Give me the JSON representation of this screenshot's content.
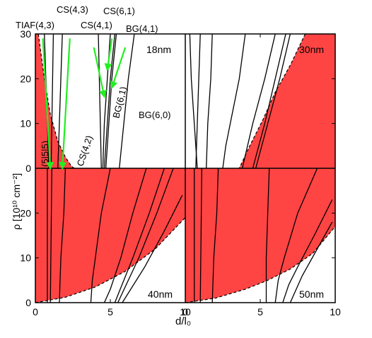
{
  "chart_data": {
    "type": "line",
    "xlabel": "d/l₀",
    "ylabel": "ρ [10¹⁰ cm⁻²]",
    "xlim": [
      0,
      10
    ],
    "ylim": [
      0,
      30
    ],
    "x_ticks": [
      0,
      5,
      10
    ],
    "y_ticks": [
      0,
      10,
      20,
      30
    ],
    "grid": false,
    "colors": {
      "shaded_region": "#ff4444",
      "curve": "#000000",
      "arrow": "#22ee22",
      "boundary": "#000000"
    },
    "panels": [
      {
        "id": "top-left",
        "label": "18nm",
        "boundary": [
          [
            0.2,
            30
          ],
          [
            0.6,
            20
          ],
          [
            1.0,
            12
          ],
          [
            1.5,
            6
          ],
          [
            2.0,
            2.5
          ],
          [
            2.4,
            0.5
          ],
          [
            2.6,
            0
          ]
        ],
        "curves": [
          [
            [
              0.6,
              30
            ],
            [
              0.7,
              20
            ],
            [
              0.8,
              10
            ],
            [
              0.9,
              0
            ]
          ],
          [
            [
              1.2,
              30
            ],
            [
              1.15,
              20
            ],
            [
              1.1,
              10
            ],
            [
              1.05,
              0
            ]
          ],
          [
            [
              1.8,
              30
            ],
            [
              1.7,
              20
            ],
            [
              1.6,
              10
            ],
            [
              1.5,
              0
            ]
          ],
          [
            [
              4.2,
              30
            ],
            [
              4.3,
              15
            ],
            [
              4.4,
              0
            ]
          ],
          [
            [
              5.0,
              30
            ],
            [
              4.8,
              20
            ],
            [
              4.6,
              10
            ],
            [
              4.5,
              0
            ]
          ],
          [
            [
              5.3,
              30
            ],
            [
              5.0,
              20
            ],
            [
              4.8,
              10
            ],
            [
              4.6,
              0
            ]
          ],
          [
            [
              5.4,
              30
            ],
            [
              5.1,
              20
            ],
            [
              4.9,
              10
            ],
            [
              4.7,
              0
            ]
          ],
          [
            [
              6.6,
              30
            ],
            [
              6.2,
              20
            ],
            [
              5.9,
              10
            ],
            [
              5.6,
              0
            ]
          ]
        ],
        "labels": [
          "TIAF(4,3)",
          "CS(4,3)",
          "CS(6,1)",
          "CS(4,1)",
          "BG(4,1)",
          "(5|5|5)",
          "CS(4,2)",
          "BG(6,1)",
          "BG(6,0)"
        ],
        "arrows": [
          {
            "from": [
              0.5,
              29
            ],
            "to": [
              1.0,
              0
            ]
          },
          {
            "from": [
              2.3,
              29
            ],
            "to": [
              1.8,
              0
            ]
          },
          {
            "from": [
              3.9,
              27
            ],
            "to": [
              4.6,
              16
            ]
          },
          {
            "from": [
              5.1,
              29
            ],
            "to": [
              4.8,
              22
            ]
          },
          {
            "from": [
              6.0,
              27
            ],
            "to": [
              5.1,
              18
            ]
          }
        ]
      },
      {
        "id": "top-right",
        "label": "30nm",
        "boundary": [
          [
            8.0,
            30
          ],
          [
            7.0,
            23
          ],
          [
            6.0,
            17
          ],
          [
            5.2,
            11
          ],
          [
            4.3,
            5
          ],
          [
            3.6,
            0
          ]
        ],
        "curves": [
          [
            [
              0.3,
              30
            ],
            [
              0.4,
              20
            ],
            [
              0.6,
              10
            ],
            [
              0.8,
              0
            ]
          ],
          [
            [
              1.0,
              30
            ],
            [
              0.9,
              20
            ],
            [
              0.8,
              10
            ],
            [
              0.7,
              0
            ]
          ],
          [
            [
              1.8,
              30
            ],
            [
              1.7,
              20
            ],
            [
              1.5,
              10
            ],
            [
              1.4,
              0
            ]
          ],
          [
            [
              4.0,
              30
            ],
            [
              3.8,
              25
            ],
            [
              3.6,
              20
            ],
            [
              3.3,
              15
            ],
            [
              3.0,
              10
            ],
            [
              2.7,
              5
            ],
            [
              2.5,
              0
            ]
          ],
          [
            [
              6.0,
              30
            ],
            [
              5.3,
              20
            ],
            [
              4.5,
              10
            ],
            [
              3.8,
              0
            ]
          ],
          [
            [
              6.7,
              30
            ],
            [
              6.0,
              20
            ],
            [
              5.3,
              10
            ],
            [
              4.5,
              0
            ]
          ],
          [
            [
              7.0,
              30
            ],
            [
              6.3,
              20
            ],
            [
              5.5,
              10
            ],
            [
              4.7,
              0
            ]
          ]
        ]
      },
      {
        "id": "bottom-left",
        "label": "40nm",
        "boundary": [
          [
            0,
            0
          ],
          [
            2,
            1.2
          ],
          [
            4,
            3.5
          ],
          [
            6,
            7
          ],
          [
            8,
            12
          ],
          [
            10,
            19
          ]
        ],
        "curves": [
          [
            [
              0.8,
              30
            ],
            [
              0.8,
              0
            ]
          ],
          [
            [
              1.1,
              30
            ],
            [
              1.0,
              0
            ]
          ],
          [
            [
              2.0,
              30
            ],
            [
              1.9,
              20
            ],
            [
              1.7,
              10
            ],
            [
              1.6,
              0
            ]
          ],
          [
            [
              5.0,
              30
            ],
            [
              4.4,
              20
            ],
            [
              4.0,
              10
            ],
            [
              3.8,
              5
            ],
            [
              3.7,
              0
            ]
          ],
          [
            [
              7.4,
              30
            ],
            [
              6.5,
              20
            ],
            [
              5.7,
              10
            ],
            [
              5.0,
              3
            ],
            [
              4.6,
              0
            ]
          ],
          [
            [
              8.6,
              30
            ],
            [
              7.6,
              20
            ],
            [
              6.5,
              10
            ],
            [
              5.3,
              0
            ]
          ],
          [
            [
              9.2,
              30
            ],
            [
              8.1,
              20
            ],
            [
              6.9,
              10
            ],
            [
              5.5,
              0
            ]
          ],
          [
            [
              9.8,
              24
            ],
            [
              8.6,
              16
            ],
            [
              7.3,
              8
            ],
            [
              5.8,
              0
            ]
          ]
        ]
      },
      {
        "id": "bottom-right",
        "label": "50nm",
        "boundary": [
          [
            0,
            0
          ],
          [
            2,
            1
          ],
          [
            4,
            3
          ],
          [
            5.5,
            5
          ],
          [
            7,
            7.5
          ],
          [
            8.5,
            11
          ],
          [
            10,
            17
          ]
        ],
        "curves": [
          [
            [
              0.6,
              30
            ],
            [
              0.6,
              0
            ]
          ],
          [
            [
              1.1,
              30
            ],
            [
              1.0,
              0
            ]
          ],
          [
            [
              2.2,
              30
            ],
            [
              2.1,
              20
            ],
            [
              1.9,
              10
            ],
            [
              1.8,
              0
            ]
          ],
          [
            [
              5.6,
              30
            ],
            [
              5.5,
              20
            ],
            [
              5.4,
              10
            ],
            [
              5.4,
              0
            ]
          ],
          [
            [
              8.8,
              30
            ],
            [
              7.5,
              20
            ],
            [
              6.6,
              10
            ],
            [
              6.2,
              5
            ],
            [
              6.0,
              0
            ]
          ],
          [
            [
              9.8,
              23
            ],
            [
              8.6,
              15
            ],
            [
              7.5,
              8
            ],
            [
              6.9,
              4
            ],
            [
              6.5,
              0
            ]
          ],
          [
            [
              9.8,
              18
            ],
            [
              8.8,
              12
            ],
            [
              7.8,
              6
            ],
            [
              7.0,
              0
            ]
          ]
        ]
      }
    ]
  }
}
